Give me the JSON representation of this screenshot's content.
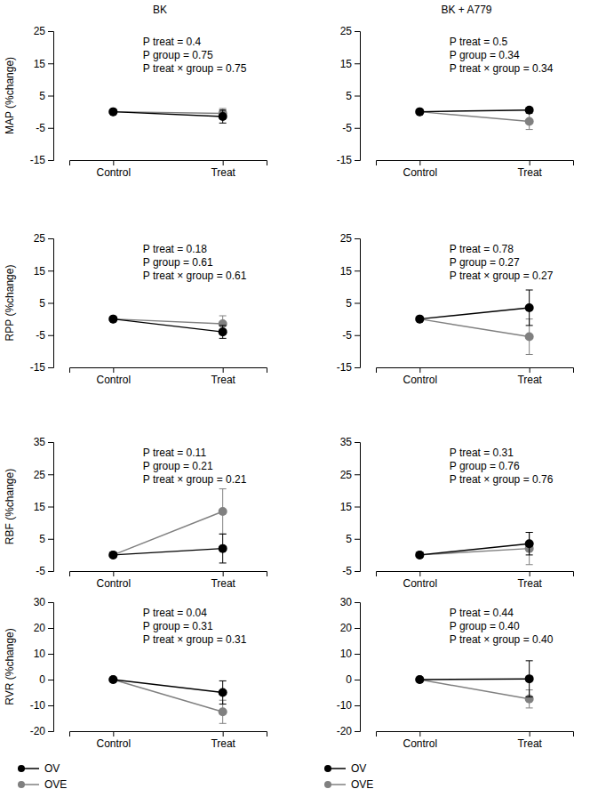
{
  "chart_data": [
    {
      "type": "line",
      "title": "BK",
      "y_label": "MAP (%change)",
      "categories": [
        "Control",
        "Treat"
      ],
      "ylim": [
        -15,
        25
      ],
      "yticks": [
        -15,
        -5,
        5,
        15,
        25
      ],
      "marker": "circle",
      "annotations": [
        "P treat = 0.4",
        "P group = 0.75",
        "P treat × group = 0.75"
      ],
      "series": [
        {
          "name": "OV",
          "color": "#000000",
          "values": [
            0,
            -1.5
          ],
          "errors": [
            null,
            2
          ]
        },
        {
          "name": "OVE",
          "color": "#808080",
          "values": [
            0,
            -0.5
          ],
          "errors": [
            null,
            1.5
          ]
        }
      ]
    },
    {
      "type": "line",
      "title": "BK + A779",
      "categories": [
        "Control",
        "Treat"
      ],
      "ylim": [
        -15,
        25
      ],
      "yticks": [
        -15,
        -5,
        5,
        15,
        25
      ],
      "marker": "circle",
      "annotations": [
        "P treat = 0.5",
        "P group = 0.34",
        "P treat × group = 0.34"
      ],
      "series": [
        {
          "name": "OV",
          "color": "#000000",
          "values": [
            0,
            0.5
          ],
          "errors": [
            null,
            0.5
          ]
        },
        {
          "name": "OVE",
          "color": "#808080",
          "values": [
            0,
            -3
          ],
          "errors": [
            null,
            2.5
          ]
        }
      ]
    },
    {
      "type": "line",
      "y_label": "RPP (%change)",
      "categories": [
        "Control",
        "Treat"
      ],
      "ylim": [
        -15,
        25
      ],
      "yticks": [
        -15,
        -5,
        5,
        15,
        25
      ],
      "marker": "circle",
      "annotations": [
        "P treat = 0.18",
        "P group = 0.61",
        "P treat × group = 0.61"
      ],
      "series": [
        {
          "name": "OV",
          "color": "#000000",
          "values": [
            0,
            -4
          ],
          "errors": [
            null,
            2
          ]
        },
        {
          "name": "OVE",
          "color": "#808080",
          "values": [
            0,
            -1.5
          ],
          "errors": [
            null,
            2.5
          ]
        }
      ]
    },
    {
      "type": "line",
      "categories": [
        "Control",
        "Treat"
      ],
      "ylim": [
        -15,
        25
      ],
      "yticks": [
        -15,
        -5,
        5,
        15,
        25
      ],
      "marker": "circle",
      "annotations": [
        "P treat = 0.78",
        "P group = 0.27",
        "P treat × group = 0.27"
      ],
      "series": [
        {
          "name": "OV",
          "color": "#000000",
          "values": [
            0,
            3.5
          ],
          "errors": [
            null,
            5.5
          ]
        },
        {
          "name": "OVE",
          "color": "#808080",
          "values": [
            0,
            -5.5
          ],
          "errors": [
            null,
            5.5
          ]
        }
      ]
    },
    {
      "type": "line",
      "y_label": "RBF (%change)",
      "categories": [
        "Control",
        "Treat"
      ],
      "ylim": [
        -5,
        35
      ],
      "yticks": [
        -5,
        5,
        15,
        25,
        35
      ],
      "marker": "circle",
      "annotations": [
        "P treat = 0.11",
        "P group = 0.21",
        "P treat × group = 0.21"
      ],
      "series": [
        {
          "name": "OV",
          "color": "#000000",
          "values": [
            0,
            2
          ],
          "errors": [
            null,
            4.5
          ]
        },
        {
          "name": "OVE",
          "color": "#808080",
          "values": [
            0,
            13.5
          ],
          "errors": [
            null,
            7
          ]
        }
      ]
    },
    {
      "type": "line",
      "categories": [
        "Control",
        "Treat"
      ],
      "ylim": [
        -5,
        35
      ],
      "yticks": [
        -5,
        5,
        15,
        25,
        35
      ],
      "marker": "circle",
      "annotations": [
        "P treat = 0.31",
        "P group = 0.76",
        "P treat × group = 0.76"
      ],
      "series": [
        {
          "name": "OV",
          "color": "#000000",
          "values": [
            0,
            3.5
          ],
          "errors": [
            null,
            3.5
          ]
        },
        {
          "name": "OVE",
          "color": "#808080",
          "values": [
            0,
            2
          ],
          "errors": [
            null,
            5
          ]
        }
      ]
    },
    {
      "type": "line",
      "y_label": "RVR (%change)",
      "categories": [
        "Control",
        "Treat"
      ],
      "ylim": [
        -20,
        30
      ],
      "yticks": [
        -20,
        -10,
        0,
        10,
        20,
        30
      ],
      "marker": "circle",
      "legend": "bottom",
      "annotations": [
        "P treat = 0.04",
        "P group = 0.31",
        "P treat × group = 0.31"
      ],
      "series": [
        {
          "name": "OV",
          "color": "#000000",
          "values": [
            0,
            -5
          ],
          "errors": [
            null,
            4.5
          ]
        },
        {
          "name": "OVE",
          "color": "#808080",
          "values": [
            0,
            -12.5
          ],
          "errors": [
            null,
            4.5
          ]
        }
      ]
    },
    {
      "type": "line",
      "categories": [
        "Control",
        "Treat"
      ],
      "ylim": [
        -20,
        30
      ],
      "yticks": [
        -20,
        -10,
        0,
        10,
        20,
        30
      ],
      "marker": "circle",
      "legend": "bottom",
      "annotations": [
        "P treat = 0.44",
        "P group = 0.40",
        "P treat × group = 0.40"
      ],
      "series": [
        {
          "name": "OV",
          "color": "#000000",
          "values": [
            0,
            0.3
          ],
          "errors": [
            null,
            7
          ]
        },
        {
          "name": "OVE",
          "color": "#808080",
          "values": [
            0,
            -7.5
          ],
          "errors": [
            null,
            3.5
          ]
        }
      ]
    }
  ]
}
